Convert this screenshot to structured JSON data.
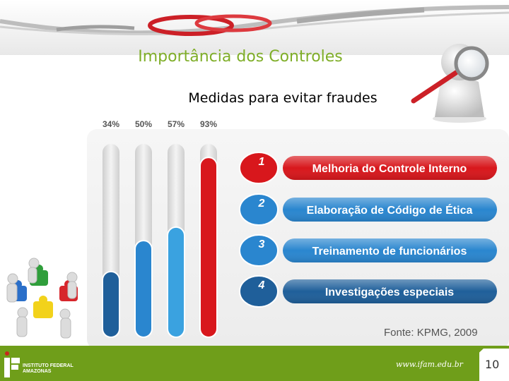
{
  "slide": {
    "title": "Importância dos Controles",
    "subtitle": "Medidas para evitar fraudes",
    "source": "Fonte: KPMG, 2009"
  },
  "footer": {
    "logo_line1": "INSTITUTO FEDERAL",
    "logo_line2": "AMAZONAS",
    "url": "www.ifam.edu.br",
    "page_number": "10"
  },
  "colors": {
    "title_green": "#7fae28",
    "footer_green": "#6f9e1a",
    "bar_dark_blue": "#1f5f9a",
    "bar_blue": "#2a86cf",
    "bar_light_blue": "#3aa2e0",
    "bar_red": "#d8171c"
  },
  "icons": [
    "chain-icon",
    "magnifier-figure-icon",
    "puzzle-people-icon",
    "ifam-logo-icon"
  ],
  "chart_data": {
    "type": "bar",
    "orientation": "vertical",
    "title": "",
    "xlabel": "",
    "ylabel": "",
    "ylim": [
      0,
      100
    ],
    "categories": [
      "4",
      "3",
      "2",
      "1"
    ],
    "values": [
      34,
      50,
      57,
      93
    ],
    "value_labels": [
      "34%",
      "50%",
      "57%",
      "93%"
    ],
    "bar_colors": [
      "#1f5f9a",
      "#2a86cf",
      "#3aa2e0",
      "#d8171c"
    ],
    "items": [
      {
        "number": "1",
        "label": "Melhoria do Controle Interno",
        "color": "#d8171c"
      },
      {
        "number": "2",
        "label": "Elaboração de Código de Ética",
        "color": "#2a86cf"
      },
      {
        "number": "3",
        "label": "Treinamento de funcionários",
        "color": "#2a86cf"
      },
      {
        "number": "4",
        "label": "Investigações especiais",
        "color": "#1f5f9a"
      }
    ],
    "grid": false
  }
}
